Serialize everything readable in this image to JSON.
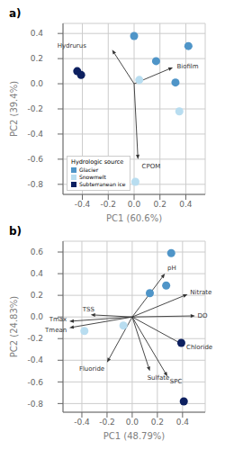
{
  "chart_data": [
    {
      "type": "scatter",
      "title": "a)",
      "x_label": "PC1 (60.6%)",
      "y_label": "PC2 (39.4%)",
      "xlim": [
        -0.55,
        0.55
      ],
      "ylim": [
        -0.88,
        0.48
      ],
      "xticks": [
        -0.4,
        -0.2,
        {
          "value": 0.0,
          "label": "0.0"
        },
        0.2,
        0.4
      ],
      "yticks": [
        -0.8,
        -0.6,
        -0.4,
        -0.2,
        {
          "value": 0.0,
          "label": "0.0"
        },
        0.2,
        0.4
      ],
      "grid": true,
      "legend": "lower left",
      "legend_title": "Hydrologic source",
      "series": [
        {
          "name": "Glacier",
          "color": "#4f95c8",
          "x": [
            0.0,
            0.17,
            0.42,
            0.32
          ],
          "values": [
            0.38,
            0.18,
            0.3,
            0.01
          ]
        },
        {
          "name": "Snowmelt",
          "color": "#b8ddf0",
          "x": [
            0.04,
            0.35,
            0.01
          ],
          "values": [
            0.03,
            -0.22,
            -0.78
          ]
        },
        {
          "name": "Subterranean ice",
          "color": "#0d2060",
          "x": [
            -0.44,
            -0.41
          ],
          "values": [
            0.1,
            0.07
          ]
        }
      ],
      "annotations": [
        {
          "text": "Hydrurus",
          "x": -0.37,
          "y": 0.3,
          "arrow_from": [
            0.0,
            0.0
          ],
          "arrow_to": [
            -0.17,
            0.27
          ],
          "color": "#333333"
        },
        {
          "text": "Biofilm",
          "x": 0.33,
          "y": 0.14,
          "arrow_from": [
            0.0,
            0.0
          ],
          "arrow_to": [
            0.3,
            0.13
          ],
          "color": "#333333"
        },
        {
          "text": "CPOM",
          "x": 0.06,
          "y": -0.66,
          "arrow_from": [
            0.0,
            0.0
          ],
          "arrow_to": [
            0.03,
            -0.6
          ],
          "color": "#333333"
        }
      ]
    },
    {
      "type": "scatter",
      "title": "b)",
      "x_label": "PC1 (48.79%)",
      "y_label": "PC2 (24.83%)",
      "xlim": [
        -0.55,
        0.58
      ],
      "ylim": [
        -0.88,
        0.7
      ],
      "xticks": [
        -0.4,
        -0.2,
        {
          "value": 0.0,
          "label": "0.0"
        },
        0.2,
        0.4
      ],
      "yticks": [
        -0.8,
        -0.6,
        -0.4,
        -0.2,
        {
          "value": 0.0,
          "label": "0.0"
        },
        0.2,
        0.4,
        0.6
      ],
      "grid": true,
      "series": [
        {
          "name": "Glacier",
          "color": "#4f95c8",
          "x": [
            0.14,
            0.27,
            0.31
          ],
          "values": [
            0.22,
            0.29,
            0.59
          ]
        },
        {
          "name": "Snowmelt",
          "color": "#b8ddf0",
          "x": [
            -0.38,
            -0.07
          ],
          "values": [
            -0.13,
            -0.08
          ]
        },
        {
          "name": "Subterranean ice",
          "color": "#0d2060",
          "x": [
            0.39,
            0.41
          ],
          "values": [
            -0.24,
            -0.78
          ]
        }
      ],
      "annotations": [
        {
          "text": "pH",
          "x": 0.28,
          "y": 0.45,
          "arrow_from": [
            0.0,
            0.0
          ],
          "arrow_to": [
            0.26,
            0.4
          ],
          "color": "#333333"
        },
        {
          "text": "Nitrate",
          "x": 0.46,
          "y": 0.23,
          "arrow_from": [
            0.0,
            0.0
          ],
          "arrow_to": [
            0.44,
            0.21
          ],
          "color": "#333333"
        },
        {
          "text": "DO",
          "x": 0.52,
          "y": 0.01,
          "arrow_from": [
            0.0,
            0.0
          ],
          "arrow_to": [
            0.5,
            0.01
          ],
          "color": "#333333"
        },
        {
          "text": "Chloride",
          "x": 0.43,
          "y": -0.28,
          "arrow_from": [
            0.0,
            0.0
          ],
          "arrow_to": [
            0.41,
            -0.26
          ],
          "color": "#333333"
        },
        {
          "text": "SPC",
          "x": 0.3,
          "y": -0.6,
          "arrow_from": [
            0.0,
            0.0
          ],
          "arrow_to": [
            0.28,
            -0.55
          ],
          "color": "#333333"
        },
        {
          "text": "Sulfate",
          "x": 0.12,
          "y": -0.56,
          "arrow_from": [
            0.0,
            0.0
          ],
          "arrow_to": [
            0.14,
            -0.5
          ],
          "color": "#333333"
        },
        {
          "text": "Fluoride",
          "x": -0.22,
          "y": -0.48,
          "arrow_from": [
            0.0,
            0.0
          ],
          "arrow_to": [
            -0.2,
            -0.42
          ],
          "color": "#333333"
        },
        {
          "text": "TSS",
          "x": -0.3,
          "y": 0.07,
          "arrow_from": [
            0.0,
            0.0
          ],
          "arrow_to": [
            -0.33,
            0.02
          ],
          "color": "#333333"
        },
        {
          "text": "Tmax",
          "x": -0.52,
          "y": -0.02,
          "arrow_from": [
            0.0,
            0.0
          ],
          "arrow_to": [
            -0.5,
            -0.04
          ],
          "color": "#333333"
        },
        {
          "text": "Tmean",
          "x": -0.52,
          "y": -0.12,
          "arrow_from": [
            0.0,
            0.0
          ],
          "arrow_to": [
            -0.5,
            -0.1
          ],
          "color": "#333333"
        }
      ]
    }
  ]
}
